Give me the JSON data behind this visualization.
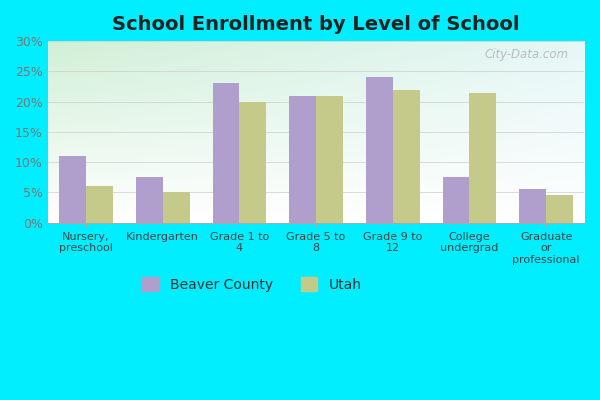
{
  "title": "School Enrollment by Level of School",
  "categories": [
    "Nursery,\npreschool",
    "Kindergarten",
    "Grade 1 to\n4",
    "Grade 5 to\n8",
    "Grade 9 to\n12",
    "College\nundergrad",
    "Graduate\nor\nprofessional"
  ],
  "beaver_county": [
    11,
    7.5,
    23,
    21,
    24,
    7.5,
    5.5
  ],
  "utah": [
    6,
    5,
    20,
    21,
    22,
    21.5,
    4.5
  ],
  "beaver_color": "#b09fcc",
  "utah_color": "#c5c98a",
  "ylim": [
    0,
    30
  ],
  "yticks": [
    0,
    5,
    10,
    15,
    20,
    25,
    30
  ],
  "ytick_labels": [
    "0%",
    "5%",
    "10%",
    "15%",
    "20%",
    "25%",
    "30%"
  ],
  "legend_beaver": "Beaver County",
  "legend_utah": "Utah",
  "fig_bg_color": "#00eeff",
  "watermark": "City-Data.com",
  "bar_width": 0.35,
  "grid_color": "#cccccc",
  "tick_color": "#777777",
  "title_fontsize": 14,
  "axis_label_fontsize": 8,
  "ytick_fontsize": 9
}
